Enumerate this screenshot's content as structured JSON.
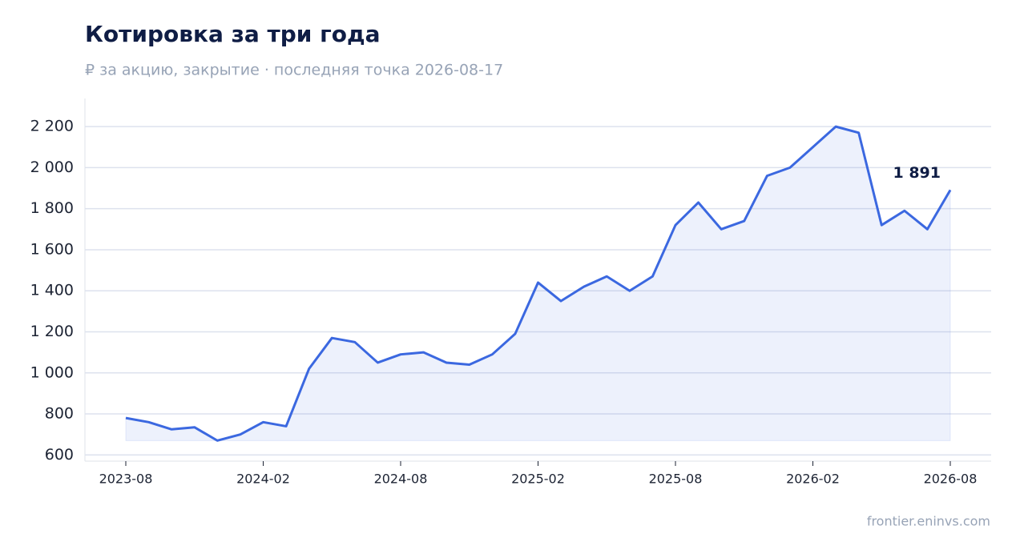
{
  "chart_data": {
    "type": "line",
    "title": "Котировка за три года",
    "subtitle": "₽ за акцию, закрытие · последняя точка 2026-08-17",
    "source": "frontier.eninvs.com",
    "x": [
      "2023-08",
      "2023-09",
      "2023-10",
      "2023-11",
      "2023-12",
      "2024-01",
      "2024-02",
      "2024-03",
      "2024-04",
      "2024-05",
      "2024-06",
      "2024-07",
      "2024-08",
      "2024-09",
      "2024-10",
      "2024-11",
      "2024-12",
      "2025-01",
      "2025-02",
      "2025-03",
      "2025-04",
      "2025-05",
      "2025-06",
      "2025-07",
      "2025-08",
      "2025-09",
      "2025-10",
      "2025-11",
      "2025-12",
      "2026-01",
      "2026-02",
      "2026-03",
      "2026-04",
      "2026-05",
      "2026-06",
      "2026-07",
      "2026-08"
    ],
    "series": [
      {
        "name": "Котировка",
        "color": "#3b68e0",
        "values": [
          780,
          760,
          725,
          735,
          670,
          700,
          760,
          740,
          1020,
          1170,
          1150,
          1050,
          1090,
          1100,
          1050,
          1040,
          1090,
          1190,
          1440,
          1350,
          1420,
          1470,
          1400,
          1470,
          1720,
          1830,
          1700,
          1740,
          1960,
          2000,
          2100,
          2200,
          2170,
          1720,
          1790,
          1700,
          1891
        ],
        "value_labels": [
          null,
          null,
          null,
          null,
          null,
          null,
          null,
          null,
          null,
          null,
          null,
          null,
          null,
          null,
          null,
          null,
          null,
          null,
          null,
          null,
          null,
          null,
          null,
          null,
          null,
          null,
          null,
          null,
          null,
          null,
          null,
          null,
          null,
          null,
          null,
          null,
          "1 891"
        ]
      }
    ],
    "ylim": [
      570,
      2337
    ],
    "yticks": [
      600,
      {
        "value": 800,
        "label": "800"
      },
      {
        "value": 1000,
        "label": "1 000"
      },
      {
        "value": 1200,
        "label": "1 200"
      },
      {
        "value": 1400,
        "label": "1 400"
      },
      {
        "value": 1600,
        "label": "1 600"
      },
      {
        "value": 1800,
        "label": "1 800"
      },
      {
        "value": 2000,
        "label": "2 000"
      },
      {
        "value": 2200,
        "label": "2 200"
      }
    ],
    "xticks": [
      "2023-08",
      "2024-02",
      "2024-08",
      "2025-02",
      "2025-08",
      "2026-02",
      "2026-08"
    ],
    "grid": true
  }
}
